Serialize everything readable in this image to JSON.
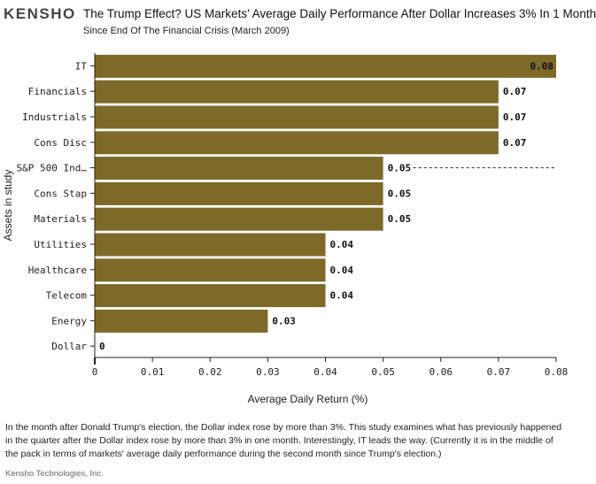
{
  "brand": "KENSHO",
  "title": "The Trump Effect? US Markets' Average Daily Performance After Dollar Increases 3% In 1 Month",
  "subtitle": "Since End Of The Financial Crisis (March 2009)",
  "caption": "In the month after Donald Trump's election, the Dollar index rose by more than 3%. This study examines what has previously happened in the quarter after the Dollar index rose by more than 3% in one month. Interestingly, IT leads the way. (Currently it is in the middle of the pack in terms of markets' average daily performance during the second month since Trump's election.)",
  "footer": "Kensho Technologies, Inc.",
  "colors": {
    "bar": "#7d6a28",
    "axis": "#222222",
    "text": "#222222"
  },
  "chart_data": {
    "type": "bar",
    "orientation": "horizontal",
    "xlabel": "Average Daily Return (%)",
    "ylabel": "Assets in study",
    "xlim": [
      0,
      0.08
    ],
    "xticks": [
      "0",
      "0.01",
      "0.02",
      "0.03",
      "0.04",
      "0.05",
      "0.06",
      "0.07",
      "0.08"
    ],
    "categories": [
      "IT",
      "Financials",
      "Industrials",
      "Cons Disc",
      "S&P 500 Ind…",
      "Cons Stap",
      "Materials",
      "Utilities",
      "Healthcare",
      "Telecom",
      "Energy",
      "Dollar"
    ],
    "values": [
      0.08,
      0.07,
      0.07,
      0.07,
      0.05,
      0.05,
      0.05,
      0.04,
      0.04,
      0.04,
      0.03,
      0
    ],
    "labels": [
      "0.08",
      "0.07",
      "0.07",
      "0.07",
      "0.05",
      "0.05",
      "0.05",
      "0.04",
      "0.04",
      "0.04",
      "0.03",
      "0"
    ],
    "reference_line": {
      "category": "S&P 500 Ind…",
      "value": 0.05,
      "style": "dashed"
    }
  }
}
